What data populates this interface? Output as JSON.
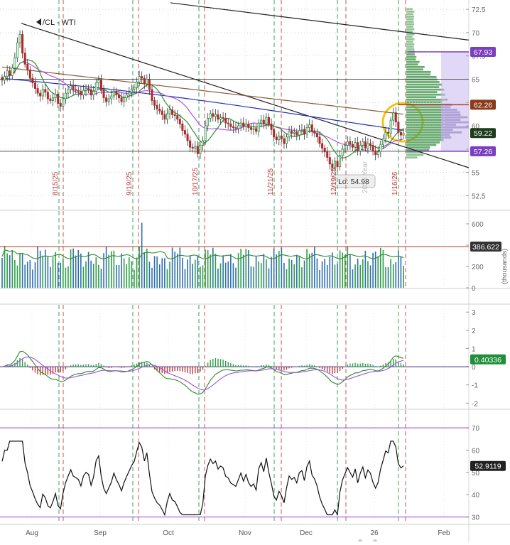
{
  "chart_data": [
    {
      "type": "candlestick",
      "title": "/CL - WTI",
      "y_ticks": [
        "72.5",
        "70",
        "67.5",
        "65",
        "62.5",
        "60",
        "57.5",
        "55",
        "52.5"
      ],
      "ylim": [
        51,
        73.5
      ],
      "x_ticks": [
        "Aug",
        "Sep",
        "Oct",
        "Nov",
        "Dec",
        "26",
        "Feb"
      ],
      "event_labels": [
        "8/15/25",
        "9/19/25",
        "10/17/25",
        "11/21/25",
        "12/19/25",
        "1/16/26"
      ],
      "watermark": "2026 Year",
      "price_badges": [
        {
          "value": "67.93",
          "color": "#7b3fbf"
        },
        {
          "value": "62.26",
          "color": "#8b3a1a"
        },
        {
          "value": "59.22",
          "color": "#1d3d1d"
        },
        {
          "value": "57.26",
          "color": "#7b3fbf"
        }
      ],
      "low_label": "Lo: 54.98",
      "horizontal_levels": [
        65.0,
        62.26,
        57.26
      ],
      "closes": [
        64.9,
        65.3,
        65.9,
        65.4,
        66.2,
        67.3,
        68.9,
        69.8,
        67.8,
        66.6,
        66.0,
        65.1,
        64.6,
        64.0,
        63.5,
        63.2,
        63.9,
        63.6,
        62.9,
        62.7,
        63.0,
        63.4,
        62.4,
        62.1,
        62.9,
        63.5,
        63.9,
        64.3,
        63.9,
        63.8,
        63.7,
        63.3,
        63.8,
        64.0,
        63.9,
        63.3,
        63.7,
        64.6,
        64.9,
        63.8,
        63.0,
        62.6,
        62.9,
        63.2,
        63.7,
        63.3,
        63.0,
        62.6,
        63.0,
        63.3,
        63.6,
        63.9,
        64.1,
        64.7,
        65.3,
        65.1,
        64.5,
        65.0,
        63.9,
        62.7,
        62.2,
        61.8,
        61.6,
        61.2,
        60.7,
        61.3,
        61.7,
        61.2,
        61.1,
        60.7,
        60.2,
        59.5,
        59.1,
        58.4,
        57.7,
        57.6,
        57.8,
        57.0,
        57.9,
        58.4,
        60.0,
        60.8,
        61.3,
        61.0,
        61.2,
        60.7,
        60.9,
        60.8,
        60.3,
        60.2,
        59.9,
        59.8,
        59.7,
        60.0,
        60.3,
        59.9,
        60.2,
        59.8,
        59.6,
        59.7,
        59.4,
        60.3,
        60.6,
        60.2,
        60.9,
        60.2,
        59.6,
        58.8,
        58.5,
        58.9,
        58.6,
        58.1,
        58.8,
        59.4,
        59.2,
        59.3,
        59.0,
        59.5,
        59.6,
        59.1,
        59.8,
        60.1,
        59.4,
        59.2,
        58.8,
        58.1,
        57.6,
        57.2,
        56.6,
        55.9,
        55.5,
        56.2,
        55.6,
        56.8,
        57.5,
        57.9,
        58.3,
        58.0,
        57.7,
        58.2,
        57.3,
        57.9,
        58.3,
        57.6,
        58.1,
        57.9,
        57.3,
        56.9,
        57.2,
        58.0,
        58.6,
        59.3,
        59.2,
        60.6,
        61.4,
        60.4,
        59.3,
        59.0,
        59.2
      ],
      "volume": {
        "unit": "(thousands)",
        "y_ticks": [
          "600",
          "400",
          "200",
          "0"
        ],
        "ylim": [
          0,
          720
        ],
        "badge": "386.622",
        "reference": 386.622,
        "up_color": "#2e9e47",
        "down_color": "#2f6fb0"
      },
      "macd": {
        "y_ticks": [
          "3",
          "2",
          "1",
          "0",
          "-1",
          "-2"
        ],
        "ylim": [
          -2.3,
          3.4
        ],
        "badge": "0.40336"
      },
      "rsi": {
        "y_ticks": [
          "70",
          "60",
          "50",
          "40",
          "30"
        ],
        "ylim": [
          27,
          78
        ],
        "badge": "52.9119",
        "upper": 70,
        "lower": 30
      }
    }
  ]
}
